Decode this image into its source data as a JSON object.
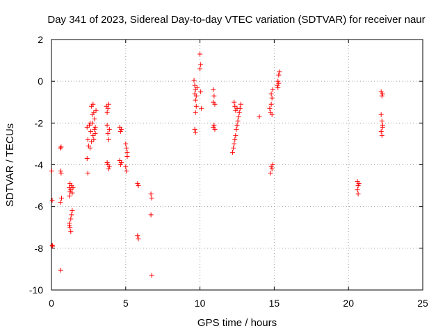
{
  "chart_data": {
    "type": "scatter",
    "title": "Day 341 of 2023, Sidereal Day-to-day VTEC variation (SDTVAR) for receiver naur",
    "xlabel": "GPS time / hours",
    "ylabel": "SDTVAR / TECUs",
    "xlim": [
      0,
      25
    ],
    "ylim": [
      -10,
      2
    ],
    "xticks": [
      "0",
      "5",
      "10",
      "15",
      "20",
      "25"
    ],
    "yticks": [
      "2",
      "0",
      "-2",
      "-4",
      "-6",
      "-8",
      "-10"
    ],
    "grid": true,
    "marker": "plus",
    "color": "#ff0000",
    "series": [
      {
        "name": "SDTVAR",
        "points": [
          [
            0.02,
            -4.3
          ],
          [
            0.05,
            -5.7
          ],
          [
            0.05,
            -7.85
          ],
          [
            0.08,
            -7.9
          ],
          [
            0.6,
            -3.2
          ],
          [
            0.65,
            -3.15
          ],
          [
            0.62,
            -4.3
          ],
          [
            0.65,
            -4.4
          ],
          [
            0.68,
            -5.6
          ],
          [
            0.6,
            -5.8
          ],
          [
            0.62,
            -9.05
          ],
          [
            1.2,
            -5.1
          ],
          [
            1.25,
            -5.3
          ],
          [
            1.2,
            -5.5
          ],
          [
            1.3,
            -5.2
          ],
          [
            1.35,
            -5.0
          ],
          [
            1.25,
            -4.9
          ],
          [
            1.4,
            -5.35
          ],
          [
            1.45,
            -5.1
          ],
          [
            1.2,
            -6.8
          ],
          [
            1.25,
            -7.0
          ],
          [
            1.3,
            -6.6
          ],
          [
            1.3,
            -7.2
          ],
          [
            1.35,
            -6.4
          ],
          [
            1.4,
            -6.2
          ],
          [
            1.2,
            -6.9
          ],
          [
            2.4,
            -2.2
          ],
          [
            2.45,
            -2.8
          ],
          [
            2.5,
            -3.1
          ],
          [
            2.4,
            -3.7
          ],
          [
            2.45,
            -4.4
          ],
          [
            2.55,
            -2.1
          ],
          [
            2.6,
            -2.0
          ],
          [
            2.65,
            -2.4
          ],
          [
            2.7,
            -2.9
          ],
          [
            2.6,
            -3.2
          ],
          [
            2.75,
            -1.6
          ],
          [
            2.7,
            -1.2
          ],
          [
            2.8,
            -1.1
          ],
          [
            2.75,
            -2.0
          ],
          [
            2.8,
            -2.6
          ],
          [
            2.85,
            -1.5
          ],
          [
            2.9,
            -2.3
          ],
          [
            2.85,
            -2.8
          ],
          [
            2.9,
            -1.8
          ],
          [
            2.95,
            -2.2
          ],
          [
            3.0,
            -1.4
          ],
          [
            2.95,
            -2.5
          ],
          [
            3.7,
            -1.2
          ],
          [
            3.75,
            -1.5
          ],
          [
            3.8,
            -1.3
          ],
          [
            3.85,
            -1.1
          ],
          [
            3.75,
            -2.1
          ],
          [
            3.8,
            -2.5
          ],
          [
            3.85,
            -2.8
          ],
          [
            3.9,
            -2.3
          ],
          [
            3.8,
            -4.0
          ],
          [
            3.85,
            -4.2
          ],
          [
            3.75,
            -3.9
          ],
          [
            3.9,
            -4.1
          ],
          [
            4.6,
            -2.2
          ],
          [
            4.65,
            -2.4
          ],
          [
            4.7,
            -2.3
          ],
          [
            4.6,
            -3.8
          ],
          [
            4.65,
            -4.0
          ],
          [
            4.7,
            -3.9
          ],
          [
            5.0,
            -3.0
          ],
          [
            5.05,
            -3.2
          ],
          [
            5.1,
            -3.4
          ],
          [
            5.0,
            -4.1
          ],
          [
            5.05,
            -4.3
          ],
          [
            5.1,
            -3.6
          ],
          [
            5.8,
            -4.9
          ],
          [
            5.85,
            -5.0
          ],
          [
            5.8,
            -7.4
          ],
          [
            5.85,
            -7.55
          ],
          [
            6.7,
            -5.4
          ],
          [
            6.75,
            -5.6
          ],
          [
            6.7,
            -6.4
          ],
          [
            6.75,
            -9.3
          ],
          [
            9.6,
            0.05
          ],
          [
            9.65,
            -0.2
          ],
          [
            9.7,
            -0.4
          ],
          [
            9.65,
            -0.6
          ],
          [
            9.7,
            -0.9
          ],
          [
            9.75,
            -1.2
          ],
          [
            9.7,
            -1.5
          ],
          [
            9.65,
            -2.3
          ],
          [
            9.7,
            -2.45
          ],
          [
            9.8,
            -0.3
          ],
          [
            9.75,
            -0.7
          ],
          [
            10.0,
            1.3
          ],
          [
            10.05,
            0.8
          ],
          [
            10.0,
            0.6
          ],
          [
            10.05,
            -0.5
          ],
          [
            10.1,
            -1.3
          ],
          [
            10.9,
            -0.4
          ],
          [
            10.95,
            -0.7
          ],
          [
            10.9,
            -1.0
          ],
          [
            11.0,
            -1.1
          ],
          [
            10.95,
            -2.1
          ],
          [
            11.0,
            -2.3
          ],
          [
            10.9,
            -2.2
          ],
          [
            12.2,
            -3.4
          ],
          [
            12.25,
            -3.2
          ],
          [
            12.3,
            -3.0
          ],
          [
            12.35,
            -2.8
          ],
          [
            12.4,
            -2.6
          ],
          [
            12.45,
            -2.3
          ],
          [
            12.5,
            -2.1
          ],
          [
            12.55,
            -1.9
          ],
          [
            12.6,
            -1.7
          ],
          [
            12.65,
            -1.5
          ],
          [
            12.7,
            -1.3
          ],
          [
            12.75,
            -1.1
          ],
          [
            12.3,
            -1.0
          ],
          [
            12.35,
            -1.2
          ],
          [
            12.4,
            -1.4
          ],
          [
            12.5,
            -1.3
          ],
          [
            14.0,
            -1.7
          ],
          [
            14.7,
            -1.3
          ],
          [
            14.75,
            -1.5
          ],
          [
            14.8,
            -1.1
          ],
          [
            14.85,
            -1.6
          ],
          [
            14.8,
            -0.6
          ],
          [
            14.85,
            -0.8
          ],
          [
            14.9,
            -0.4
          ],
          [
            14.8,
            -4.1
          ],
          [
            14.85,
            -4.2
          ],
          [
            14.9,
            -4.0
          ],
          [
            14.75,
            -4.4
          ],
          [
            15.2,
            -0.2
          ],
          [
            15.25,
            0.0
          ],
          [
            15.3,
            0.3
          ],
          [
            15.35,
            0.45
          ],
          [
            15.25,
            -0.3
          ],
          [
            15.3,
            -0.1
          ],
          [
            20.6,
            -4.8
          ],
          [
            20.65,
            -5.0
          ],
          [
            20.6,
            -5.2
          ],
          [
            20.65,
            -5.4
          ],
          [
            20.7,
            -4.9
          ],
          [
            22.2,
            -0.5
          ],
          [
            22.25,
            -0.7
          ],
          [
            22.3,
            -0.6
          ],
          [
            22.2,
            -1.6
          ],
          [
            22.25,
            -1.9
          ],
          [
            22.3,
            -2.1
          ],
          [
            22.2,
            -2.4
          ],
          [
            22.25,
            -2.6
          ],
          [
            22.3,
            -2.2
          ]
        ]
      }
    ]
  }
}
